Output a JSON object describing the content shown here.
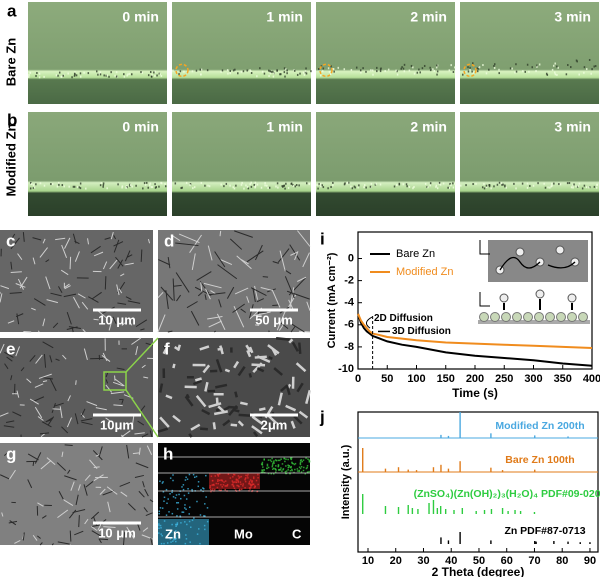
{
  "panel_a": {
    "label": "a",
    "row_label": "Bare Zn",
    "times": [
      "0 min",
      "1 min",
      "2 min",
      "3 min"
    ]
  },
  "panel_b": {
    "label": "b",
    "row_label": "Modified Zn",
    "times": [
      "0 min",
      "1 min",
      "2 min",
      "3 min"
    ]
  },
  "sem_panels": [
    {
      "label": "c",
      "scale_bar": "10 μm"
    },
    {
      "label": "d",
      "scale_bar": "50 μm"
    },
    {
      "label": "e",
      "scale_bar": "10μm"
    },
    {
      "label": "f",
      "scale_bar": "2μm"
    },
    {
      "label": "g",
      "scale_bar": "10 μm"
    }
  ],
  "panel_h": {
    "label": "h",
    "elements": [
      "Zn",
      "Mo",
      "C"
    ]
  },
  "chart_data": [
    {
      "type": "line",
      "label": "i",
      "x_label": "Time (s)",
      "y_label": "Current (mA cm⁻²)",
      "x": [
        0,
        5,
        10,
        15,
        20,
        25,
        35,
        50,
        75,
        100,
        150,
        200,
        250,
        300,
        350,
        400
      ],
      "series": [
        {
          "name": "Bare Zn",
          "color": "#000000",
          "values": [
            -5.0,
            -5.8,
            -6.3,
            -6.6,
            -6.8,
            -7.0,
            -7.2,
            -7.5,
            -7.8,
            -8.0,
            -8.5,
            -8.8,
            -9.0,
            -9.2,
            -9.5,
            -9.7
          ]
        },
        {
          "name": "Modified Zn",
          "color": "#f08c1e",
          "values": [
            -5.0,
            -5.6,
            -6.0,
            -6.3,
            -6.6,
            -6.8,
            -6.9,
            -7.1,
            -7.25,
            -7.4,
            -7.6,
            -7.7,
            -7.8,
            -7.9,
            -8.0,
            -8.1
          ]
        }
      ],
      "annotations": [
        "2D Diffusion",
        "3D Diffusion"
      ],
      "xlim": [
        0,
        400
      ],
      "xticks": [
        0,
        50,
        100,
        150,
        200,
        250,
        300,
        350,
        400
      ],
      "ylim": [
        -10,
        2.4
      ],
      "yticks": [
        0,
        -2,
        -4,
        -6,
        -8,
        -10
      ]
    },
    {
      "type": "stick",
      "label": "j",
      "x_label": "2 Theta (degree)",
      "y_label": "Intensity (a.u.)",
      "series": [
        {
          "name": "Modified Zn 200th",
          "color": "#4aa8e0",
          "x": [
            36.3,
            39.0,
            43.2,
            54.3,
            70.1,
            82.1
          ],
          "values": [
            12,
            8,
            100,
            18,
            10,
            6
          ]
        },
        {
          "name": "Bare Zn 100th",
          "color": "#e07b1a",
          "x": [
            8.1,
            16.3,
            21.0,
            24.5,
            27.5,
            33.6,
            36.3,
            39.0,
            43.2,
            54.3,
            58.5,
            70.1
          ],
          "values": [
            100,
            14,
            20,
            10,
            8,
            20,
            30,
            14,
            45,
            18,
            8,
            10
          ]
        },
        {
          "name": "(ZnSO₄)(Zn(OH)₂)₃(H₂O)₄ PDF#09-0204",
          "color": "#2ecc40",
          "x": [
            8.1,
            16.3,
            21.0,
            24.5,
            26.0,
            28.0,
            32.0,
            33.6,
            35.0,
            36.2,
            38.0,
            41.0,
            44.0,
            49.0,
            52.0,
            54.5,
            58.5,
            60.5,
            63.0,
            65.0,
            70.0
          ],
          "values": [
            100,
            40,
            35,
            45,
            30,
            25,
            55,
            70,
            30,
            40,
            25,
            20,
            30,
            15,
            20,
            25,
            30,
            15,
            20,
            15,
            10
          ]
        },
        {
          "name": "Zn PDF#87-0713",
          "color": "#000000",
          "x": [
            36.3,
            39.0,
            43.2,
            54.3,
            70.1,
            70.6,
            77.0,
            82.1,
            86.5,
            90.0
          ],
          "values": [
            55,
            30,
            100,
            30,
            25,
            20,
            25,
            20,
            15,
            15
          ]
        }
      ],
      "xlim": [
        6.4,
        92.9
      ],
      "xticks": [
        10,
        20,
        30,
        40,
        50,
        60,
        70,
        80,
        90
      ]
    }
  ]
}
